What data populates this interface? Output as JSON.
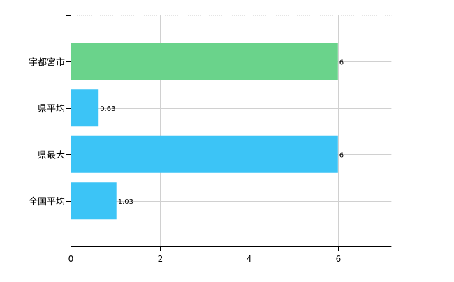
{
  "chart_data": {
    "type": "bar",
    "orientation": "horizontal",
    "categories": [
      "宇都宮市",
      "県平均",
      "県最大",
      "全国平均"
    ],
    "values": [
      6,
      0.63,
      6,
      1.03
    ],
    "data_labels": [
      "6",
      "0.63",
      "6",
      "1.03"
    ],
    "colors": [
      "#6ad38b",
      "#3cc4f6",
      "#3cc4f6",
      "#3cc4f6"
    ],
    "xlim": [
      0,
      7.2
    ],
    "xticks": [
      0,
      2,
      4,
      6
    ],
    "xtick_labels": [
      "0",
      "2",
      "4",
      "6"
    ],
    "grid": true,
    "title": "",
    "xlabel": "",
    "ylabel": ""
  }
}
